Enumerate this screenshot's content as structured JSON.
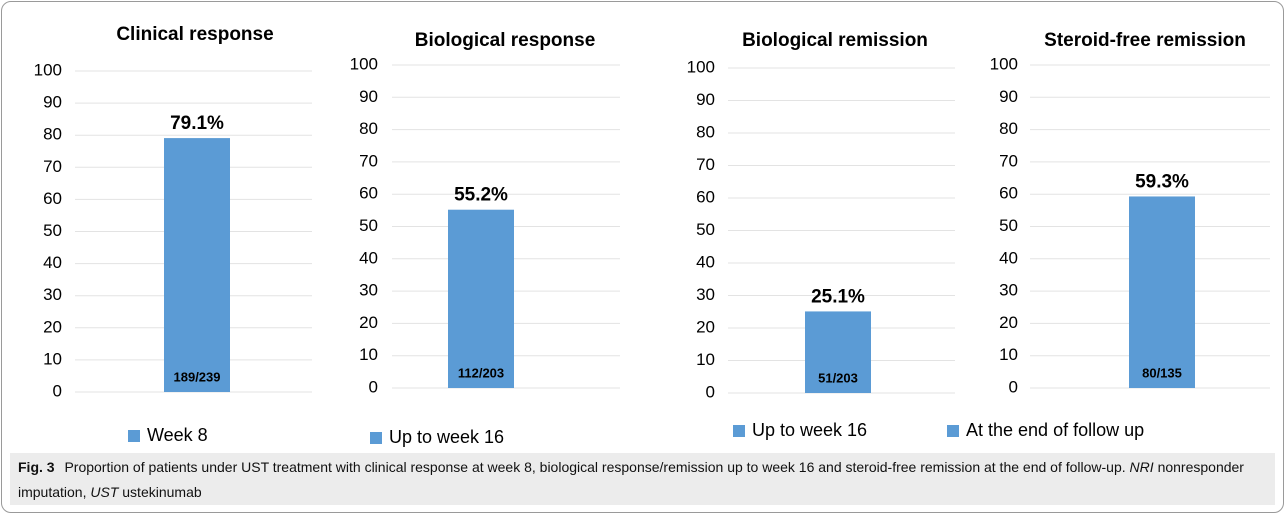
{
  "chart_data": [
    {
      "type": "bar",
      "title": "Clinical response",
      "categories": [
        null
      ],
      "series": [
        {
          "name": "Week 8",
          "color": "#5b9bd5",
          "values": [
            79.1
          ],
          "value_labels": [
            "79.1%"
          ]
        }
      ],
      "annotations": [
        "189/239"
      ],
      "ylim": [
        0,
        100
      ],
      "yticks": [
        0,
        10,
        20,
        30,
        40,
        50,
        60,
        70,
        80,
        90,
        100
      ],
      "grid": true,
      "legend": "bottom"
    },
    {
      "type": "bar",
      "title": "Biological response",
      "categories": [
        null
      ],
      "series": [
        {
          "name": "Up to week 16",
          "color": "#5b9bd5",
          "values": [
            55.2
          ],
          "value_labels": [
            "55.2%"
          ]
        }
      ],
      "annotations": [
        "112/203"
      ],
      "ylim": [
        0,
        100
      ],
      "yticks": [
        0,
        10,
        20,
        30,
        40,
        50,
        60,
        70,
        80,
        90,
        100
      ],
      "grid": true,
      "legend": "bottom"
    },
    {
      "type": "bar",
      "title": "Biological remission",
      "categories": [
        null
      ],
      "series": [
        {
          "name": "Up to week 16",
          "color": "#5b9bd5",
          "values": [
            25.1
          ],
          "value_labels": [
            "25.1%"
          ]
        }
      ],
      "annotations": [
        "51/203"
      ],
      "ylim": [
        0,
        100
      ],
      "yticks": [
        0,
        10,
        20,
        30,
        40,
        50,
        60,
        70,
        80,
        90,
        100
      ],
      "grid": true,
      "legend": "bottom"
    },
    {
      "type": "bar",
      "title": "Steroid-free remission",
      "categories": [
        null
      ],
      "series": [
        {
          "name": "At the end of follow up",
          "color": "#5b9bd5",
          "values": [
            59.3
          ],
          "value_labels": [
            "59.3%"
          ]
        }
      ],
      "annotations": [
        "80/135"
      ],
      "ylim": [
        0,
        100
      ],
      "yticks": [
        0,
        10,
        20,
        30,
        40,
        50,
        60,
        70,
        80,
        90,
        100
      ],
      "grid": true,
      "legend": "bottom"
    }
  ],
  "caption": {
    "label": "Fig. 3",
    "text": "Proportion of patients under UST treatment with clinical response at week 8, biological response/remission up to week 16 and steroid-free remission at the end of follow-up.",
    "abbreviations": [
      {
        "term": "NRI",
        "definition": "nonresponder imputation,"
      },
      {
        "term": "UST",
        "definition": "ustekinumab"
      }
    ]
  }
}
